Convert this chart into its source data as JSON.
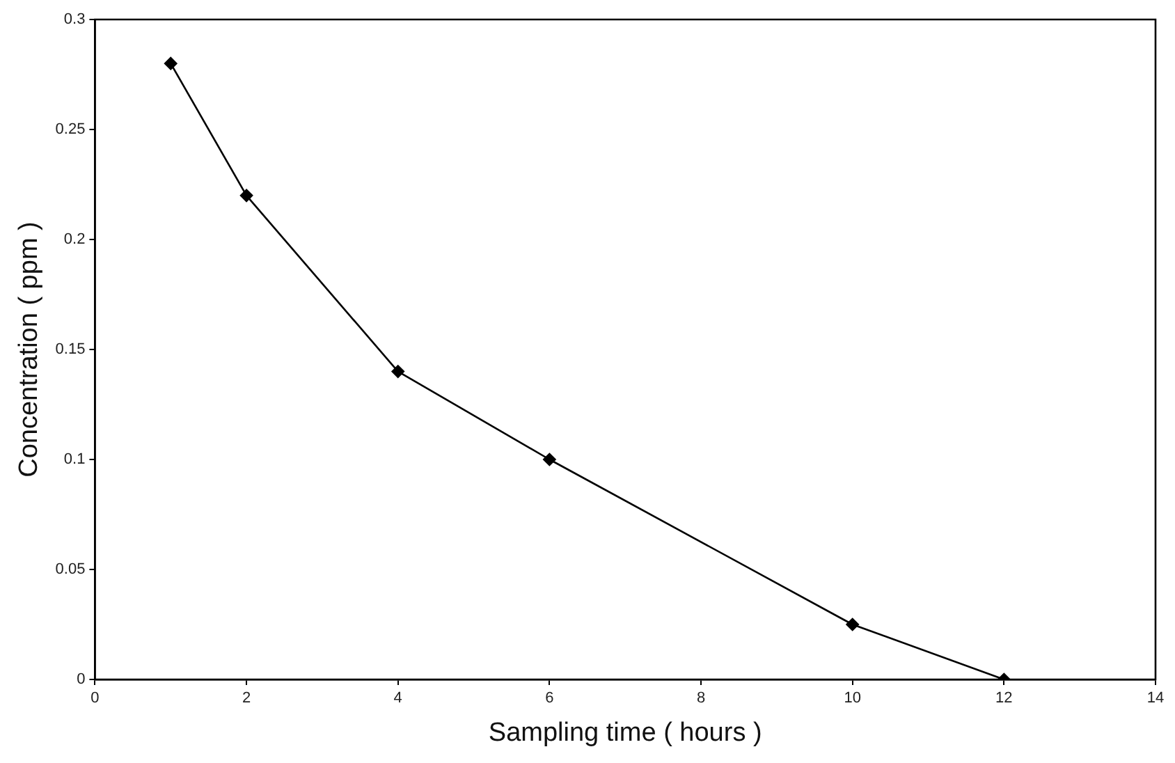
{
  "chart_data": {
    "type": "line",
    "xlabel": "Sampling time ( hours )",
    "ylabel": "Concentration ( ppm )",
    "x": [
      1,
      2,
      4,
      6,
      10,
      12
    ],
    "series": [
      {
        "color": "#000000",
        "values": [
          0.28,
          0.22,
          0.14,
          0.1,
          0.025,
          0
        ]
      }
    ],
    "xlim": [
      0,
      14
    ],
    "xticks": [
      0,
      2,
      4,
      6,
      8,
      10,
      12,
      14
    ],
    "ylim": [
      0,
      0.3
    ],
    "yticks": [
      0,
      0.05,
      0.1,
      0.15,
      0.2,
      0.25,
      0.3
    ],
    "grid": false,
    "legend": false,
    "marker": "diamond",
    "line_style": "solid"
  }
}
